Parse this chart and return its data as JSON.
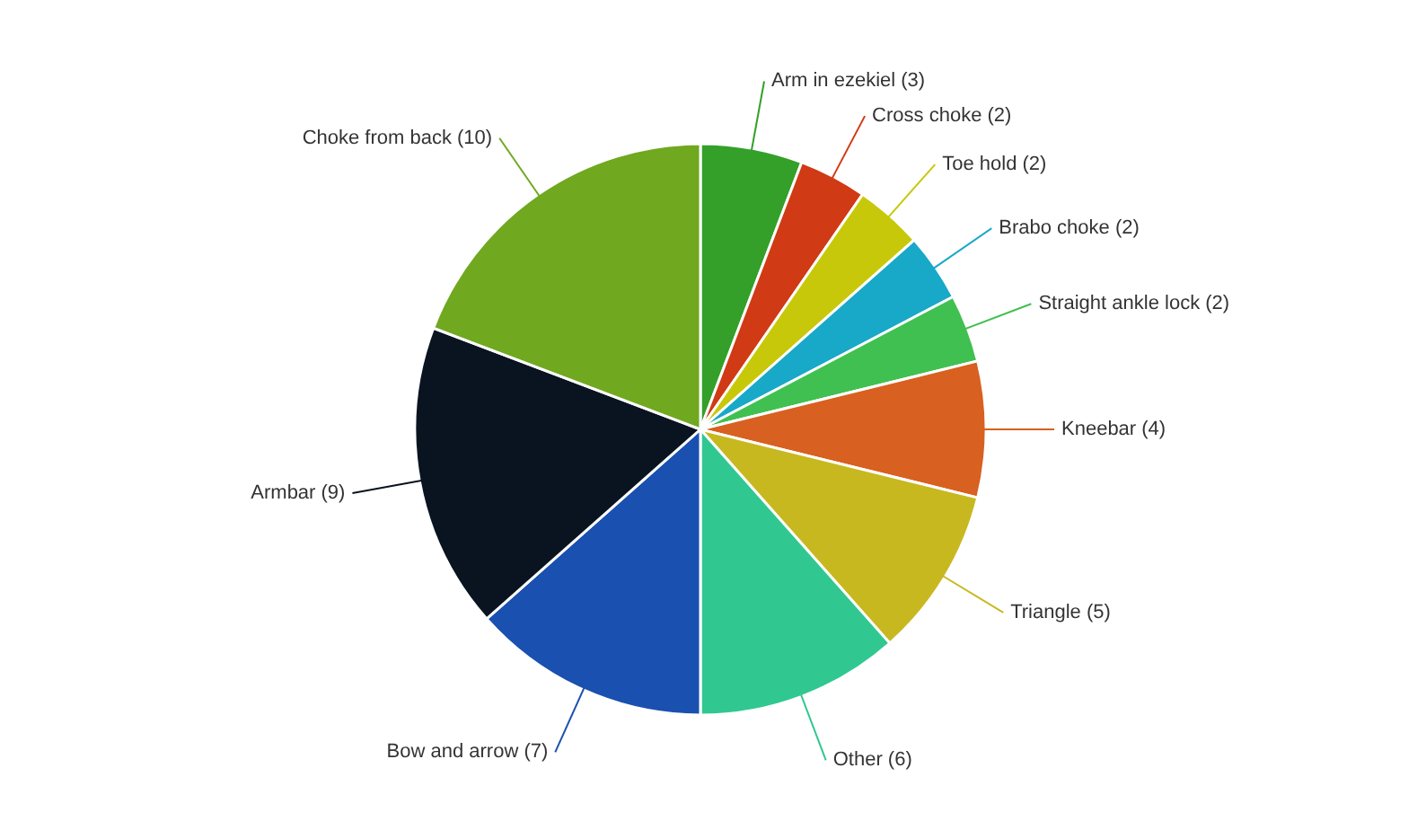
{
  "chart_data": {
    "type": "pie",
    "categories": [
      "Arm in ezekiel (3)",
      "Cross choke (2)",
      "Toe hold (2)",
      "Brabo choke (2)",
      "Straight ankle lock (2)",
      "Kneebar (4)",
      "Triangle (5)",
      "Other (6)",
      "Bow and arrow (7)",
      "Armbar (9)",
      "Choke from back (10)"
    ],
    "values": [
      3,
      2,
      2,
      2,
      2,
      4,
      5,
      6,
      7,
      9,
      10
    ],
    "colors": [
      "#34a02a",
      "#d03a14",
      "#c8c80a",
      "#18a8c8",
      "#40c050",
      "#d86020",
      "#c8b820",
      "#30c890",
      "#1a50b0",
      "#0a1420",
      "#70a820"
    ],
    "legend": false
  }
}
